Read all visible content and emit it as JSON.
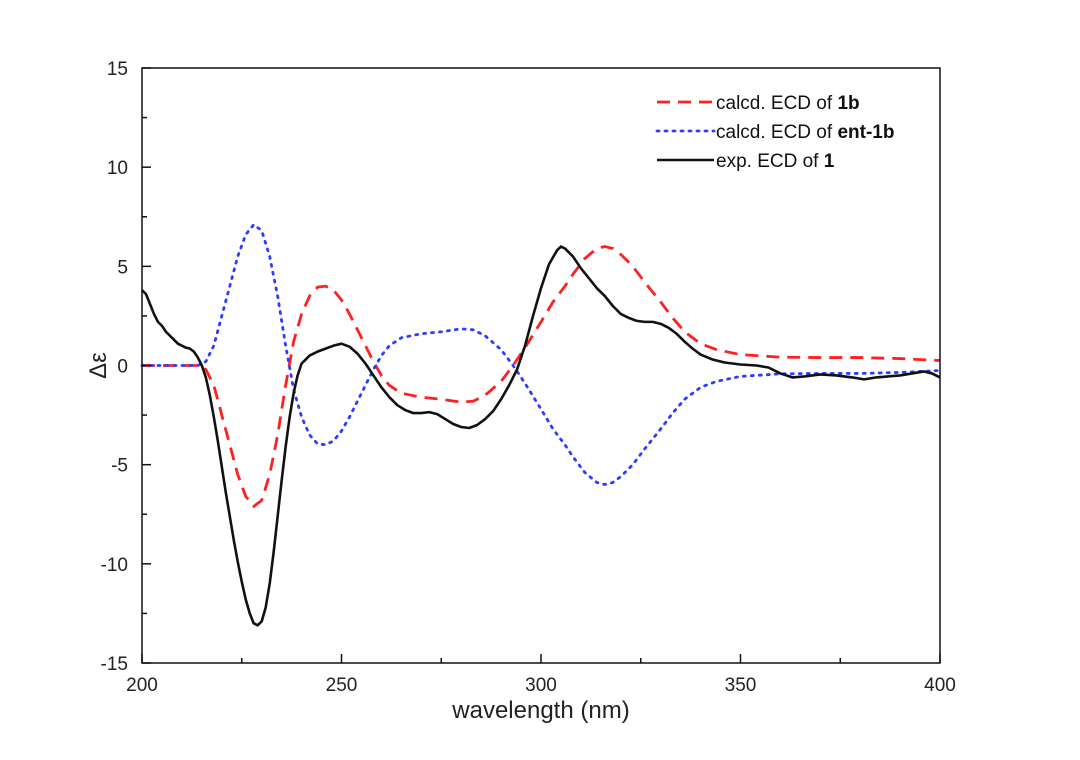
{
  "chart_data": {
    "type": "line",
    "title": "",
    "xlabel": "wavelength (nm)",
    "ylabel": "Δε",
    "xlim": [
      200,
      400
    ],
    "ylim": [
      -15,
      15
    ],
    "x_ticks": [
      200,
      250,
      300,
      350,
      400
    ],
    "y_ticks": [
      -15,
      -10,
      -5,
      0,
      5,
      10,
      15
    ],
    "x_tick_labels": [
      "200",
      "250",
      "300",
      "350",
      "400"
    ],
    "y_tick_labels": [
      "-15",
      "-10",
      "-5",
      "0",
      "5",
      "10",
      "15"
    ],
    "grid": false,
    "legend_position": "top-right",
    "series": [
      {
        "legend_prefix": "calcd. ECD of ",
        "legend_bold": "1b",
        "color": "#ff2020",
        "style": "dashed",
        "points": [
          [
            200,
            0
          ],
          [
            214,
            0
          ],
          [
            216,
            -0.2
          ],
          [
            218,
            -1
          ],
          [
            220,
            -2.5
          ],
          [
            222,
            -4
          ],
          [
            224,
            -5.5
          ],
          [
            226,
            -6.6
          ],
          [
            228,
            -7.1
          ],
          [
            230,
            -6.8
          ],
          [
            232,
            -5.5
          ],
          [
            234,
            -3.5
          ],
          [
            236,
            -1
          ],
          [
            238,
            1.2
          ],
          [
            240,
            2.6
          ],
          [
            242,
            3.5
          ],
          [
            244,
            3.95
          ],
          [
            246,
            4
          ],
          [
            248,
            3.8
          ],
          [
            250,
            3.3
          ],
          [
            252,
            2.6
          ],
          [
            254,
            1.8
          ],
          [
            256,
            1
          ],
          [
            258,
            0.2
          ],
          [
            260,
            -0.5
          ],
          [
            262,
            -1
          ],
          [
            265,
            -1.4
          ],
          [
            270,
            -1.6
          ],
          [
            275,
            -1.7
          ],
          [
            280,
            -1.85
          ],
          [
            283,
            -1.8
          ],
          [
            286,
            -1.5
          ],
          [
            290,
            -0.8
          ],
          [
            293,
            0
          ],
          [
            296,
            0.9
          ],
          [
            300,
            2.2
          ],
          [
            303,
            3.2
          ],
          [
            306,
            4
          ],
          [
            308,
            4.6
          ],
          [
            311,
            5.4
          ],
          [
            314,
            5.9
          ],
          [
            316,
            6
          ],
          [
            318,
            5.9
          ],
          [
            320,
            5.6
          ],
          [
            323,
            5
          ],
          [
            326,
            4.2
          ],
          [
            330,
            3.2
          ],
          [
            333,
            2.4
          ],
          [
            336,
            1.7
          ],
          [
            340,
            1.1
          ],
          [
            344,
            0.8
          ],
          [
            350,
            0.55
          ],
          [
            360,
            0.42
          ],
          [
            370,
            0.4
          ],
          [
            380,
            0.4
          ],
          [
            390,
            0.35
          ],
          [
            400,
            0.25
          ]
        ]
      },
      {
        "legend_prefix": "calcd. ECD of ",
        "legend_bold": "ent-1b",
        "color": "#2b3dff",
        "style": "dotted",
        "points": [
          [
            200,
            0
          ],
          [
            214,
            0
          ],
          [
            216,
            0.2
          ],
          [
            218,
            1
          ],
          [
            220,
            2.5
          ],
          [
            222,
            4
          ],
          [
            224,
            5.5
          ],
          [
            226,
            6.6
          ],
          [
            228,
            7.1
          ],
          [
            230,
            6.8
          ],
          [
            232,
            5.5
          ],
          [
            234,
            3.5
          ],
          [
            236,
            1
          ],
          [
            238,
            -1.2
          ],
          [
            240,
            -2.6
          ],
          [
            242,
            -3.5
          ],
          [
            244,
            -3.95
          ],
          [
            246,
            -4
          ],
          [
            248,
            -3.8
          ],
          [
            250,
            -3.3
          ],
          [
            252,
            -2.6
          ],
          [
            254,
            -1.8
          ],
          [
            256,
            -1
          ],
          [
            258,
            -0.2
          ],
          [
            260,
            0.5
          ],
          [
            262,
            1
          ],
          [
            265,
            1.4
          ],
          [
            270,
            1.6
          ],
          [
            275,
            1.7
          ],
          [
            280,
            1.85
          ],
          [
            283,
            1.8
          ],
          [
            286,
            1.5
          ],
          [
            290,
            0.8
          ],
          [
            293,
            0
          ],
          [
            296,
            -0.9
          ],
          [
            300,
            -2.2
          ],
          [
            303,
            -3.2
          ],
          [
            306,
            -4
          ],
          [
            308,
            -4.6
          ],
          [
            311,
            -5.4
          ],
          [
            314,
            -5.9
          ],
          [
            316,
            -6
          ],
          [
            318,
            -5.9
          ],
          [
            320,
            -5.6
          ],
          [
            323,
            -5
          ],
          [
            326,
            -4.2
          ],
          [
            330,
            -3.2
          ],
          [
            333,
            -2.4
          ],
          [
            336,
            -1.7
          ],
          [
            340,
            -1.1
          ],
          [
            344,
            -0.8
          ],
          [
            350,
            -0.55
          ],
          [
            360,
            -0.42
          ],
          [
            370,
            -0.4
          ],
          [
            380,
            -0.4
          ],
          [
            390,
            -0.35
          ],
          [
            400,
            -0.25
          ]
        ]
      },
      {
        "legend_prefix": "exp. ECD of ",
        "legend_bold": "1",
        "color": "#111111",
        "style": "solid",
        "points": [
          [
            200,
            3.8
          ],
          [
            201,
            3.6
          ],
          [
            202,
            3.1
          ],
          [
            203,
            2.6
          ],
          [
            204,
            2.2
          ],
          [
            205,
            2
          ],
          [
            206,
            1.7
          ],
          [
            207,
            1.5
          ],
          [
            208,
            1.3
          ],
          [
            209,
            1.1
          ],
          [
            210,
            1
          ],
          [
            211,
            0.9
          ],
          [
            212,
            0.85
          ],
          [
            213,
            0.7
          ],
          [
            214,
            0.4
          ],
          [
            215,
            0
          ],
          [
            216,
            -0.6
          ],
          [
            217,
            -1.5
          ],
          [
            218,
            -2.6
          ],
          [
            219,
            -3.8
          ],
          [
            220,
            -5.1
          ],
          [
            221,
            -6.4
          ],
          [
            222,
            -7.6
          ],
          [
            223,
            -8.8
          ],
          [
            224,
            -9.9
          ],
          [
            225,
            -10.9
          ],
          [
            226,
            -11.8
          ],
          [
            227,
            -12.5
          ],
          [
            228,
            -13
          ],
          [
            229,
            -13.1
          ],
          [
            230,
            -12.9
          ],
          [
            231,
            -12.2
          ],
          [
            232,
            -11
          ],
          [
            233,
            -9.4
          ],
          [
            234,
            -7.6
          ],
          [
            235,
            -5.8
          ],
          [
            236,
            -4.1
          ],
          [
            237,
            -2.6
          ],
          [
            238,
            -1.4
          ],
          [
            239,
            -0.5
          ],
          [
            240,
            0.1
          ],
          [
            242,
            0.5
          ],
          [
            244,
            0.7
          ],
          [
            246,
            0.85
          ],
          [
            248,
            1
          ],
          [
            250,
            1.1
          ],
          [
            252,
            0.95
          ],
          [
            254,
            0.6
          ],
          [
            256,
            0.1
          ],
          [
            258,
            -0.5
          ],
          [
            260,
            -1.1
          ],
          [
            262,
            -1.6
          ],
          [
            264,
            -2
          ],
          [
            266,
            -2.25
          ],
          [
            268,
            -2.4
          ],
          [
            270,
            -2.4
          ],
          [
            272,
            -2.35
          ],
          [
            274,
            -2.45
          ],
          [
            276,
            -2.7
          ],
          [
            278,
            -2.95
          ],
          [
            280,
            -3.1
          ],
          [
            282,
            -3.15
          ],
          [
            284,
            -3
          ],
          [
            286,
            -2.7
          ],
          [
            288,
            -2.3
          ],
          [
            290,
            -1.7
          ],
          [
            292,
            -1
          ],
          [
            294,
            -0.2
          ],
          [
            296,
            1
          ],
          [
            298,
            2.5
          ],
          [
            300,
            3.9
          ],
          [
            302,
            5.1
          ],
          [
            304,
            5.8
          ],
          [
            305,
            6
          ],
          [
            306,
            5.9
          ],
          [
            308,
            5.5
          ],
          [
            310,
            4.9
          ],
          [
            312,
            4.4
          ],
          [
            314,
            3.9
          ],
          [
            316,
            3.5
          ],
          [
            318,
            3
          ],
          [
            320,
            2.6
          ],
          [
            322,
            2.4
          ],
          [
            324,
            2.25
          ],
          [
            326,
            2.2
          ],
          [
            328,
            2.2
          ],
          [
            330,
            2.1
          ],
          [
            332,
            1.9
          ],
          [
            334,
            1.6
          ],
          [
            336,
            1.2
          ],
          [
            338,
            0.85
          ],
          [
            340,
            0.55
          ],
          [
            343,
            0.3
          ],
          [
            346,
            0.15
          ],
          [
            350,
            0.05
          ],
          [
            354,
            0
          ],
          [
            357,
            -0.1
          ],
          [
            360,
            -0.4
          ],
          [
            363,
            -0.6
          ],
          [
            366,
            -0.55
          ],
          [
            370,
            -0.45
          ],
          [
            374,
            -0.5
          ],
          [
            378,
            -0.6
          ],
          [
            381,
            -0.7
          ],
          [
            384,
            -0.6
          ],
          [
            387,
            -0.55
          ],
          [
            390,
            -0.5
          ],
          [
            393,
            -0.4
          ],
          [
            396,
            -0.3
          ],
          [
            398,
            -0.4
          ],
          [
            400,
            -0.6
          ]
        ]
      }
    ]
  }
}
